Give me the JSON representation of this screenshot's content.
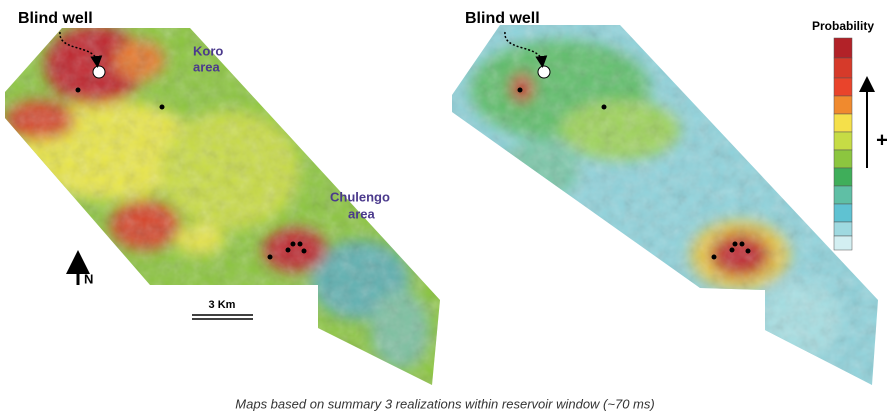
{
  "maps": {
    "left": {
      "blind_well": "Blind well",
      "koro": [
        "Koro",
        "area"
      ],
      "chulengo": [
        "Chulengo",
        "area"
      ],
      "north": "N",
      "scale": "3 Km"
    },
    "right": {
      "blind_well": "Blind well"
    },
    "legend": {
      "title": "Probability",
      "plus": "+"
    },
    "caption": "Maps based on summary 3 realizations within reservoir window (~70 ms)"
  }
}
